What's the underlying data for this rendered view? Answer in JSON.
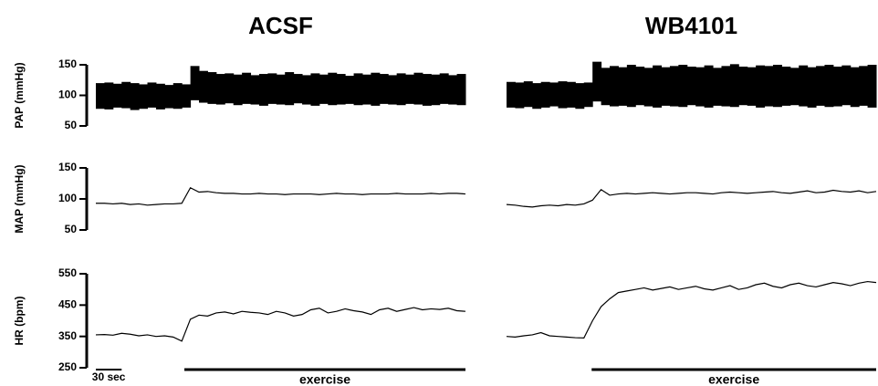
{
  "chart_data": [
    {
      "title": "ACSF",
      "xlim": [
        0,
        430
      ],
      "scalebar": {
        "label": "30 sec",
        "length": 30
      },
      "exercise": {
        "label": "exercise",
        "x": [
          103,
          430
        ]
      },
      "panels": [
        {
          "type": "range",
          "ylabel": "PAP (mmHg)",
          "ylim": [
            50,
            150
          ],
          "yticks": [
            50,
            100,
            150
          ],
          "x": [
            0,
            10,
            20,
            30,
            40,
            50,
            60,
            70,
            80,
            90,
            100,
            110,
            120,
            130,
            140,
            150,
            160,
            170,
            180,
            190,
            200,
            210,
            220,
            230,
            240,
            250,
            260,
            270,
            280,
            290,
            300,
            310,
            320,
            330,
            340,
            350,
            360,
            370,
            380,
            390,
            400,
            410,
            420,
            430
          ],
          "high": [
            120,
            121,
            119,
            122,
            120,
            118,
            121,
            119,
            117,
            120,
            118,
            148,
            140,
            138,
            135,
            136,
            134,
            137,
            133,
            135,
            136,
            134,
            138,
            135,
            133,
            136,
            134,
            137,
            135,
            132,
            136,
            134,
            137,
            135,
            133,
            136,
            134,
            137,
            135,
            134,
            136,
            133,
            135,
            132
          ],
          "low": [
            78,
            77,
            80,
            79,
            76,
            78,
            80,
            77,
            79,
            78,
            80,
            92,
            88,
            86,
            85,
            87,
            84,
            86,
            85,
            83,
            86,
            85,
            84,
            87,
            85,
            83,
            86,
            84,
            85,
            86,
            84,
            85,
            83,
            86,
            85,
            84,
            86,
            85,
            83,
            84,
            86,
            85,
            84,
            85
          ]
        },
        {
          "type": "line",
          "ylabel": "MAP (mmHg)",
          "ylim": [
            50,
            150
          ],
          "yticks": [
            50,
            100,
            150
          ],
          "x": [
            0,
            10,
            20,
            30,
            40,
            50,
            60,
            70,
            80,
            90,
            100,
            110,
            120,
            130,
            140,
            150,
            160,
            170,
            180,
            190,
            200,
            210,
            220,
            230,
            240,
            250,
            260,
            270,
            280,
            290,
            300,
            310,
            320,
            330,
            340,
            350,
            360,
            370,
            380,
            390,
            400,
            410,
            420,
            430
          ],
          "values": [
            93,
            93,
            92,
            93,
            91,
            92,
            90,
            91,
            92,
            92,
            93,
            118,
            111,
            112,
            110,
            109,
            109,
            108,
            108,
            109,
            108,
            108,
            107,
            108,
            108,
            108,
            107,
            108,
            109,
            108,
            108,
            107,
            108,
            108,
            108,
            109,
            108,
            108,
            108,
            109,
            108,
            109,
            109,
            108
          ]
        },
        {
          "type": "line",
          "ylabel": "HR (bpm)",
          "ylim": [
            250,
            550
          ],
          "yticks": [
            250,
            350,
            450,
            550
          ],
          "x": [
            0,
            10,
            20,
            30,
            40,
            50,
            60,
            70,
            80,
            90,
            100,
            110,
            120,
            130,
            140,
            150,
            160,
            170,
            180,
            190,
            200,
            210,
            220,
            230,
            240,
            250,
            260,
            270,
            280,
            290,
            300,
            310,
            320,
            330,
            340,
            350,
            360,
            370,
            380,
            390,
            400,
            410,
            420,
            430
          ],
          "values": [
            355,
            356,
            354,
            360,
            357,
            352,
            355,
            350,
            352,
            348,
            335,
            405,
            418,
            415,
            425,
            428,
            422,
            430,
            427,
            425,
            420,
            430,
            425,
            415,
            420,
            435,
            440,
            425,
            430,
            438,
            432,
            428,
            420,
            435,
            440,
            430,
            436,
            442,
            435,
            438,
            436,
            440,
            432,
            430
          ]
        }
      ]
    },
    {
      "title": "WB4101",
      "xlim": [
        0,
        430
      ],
      "exercise": {
        "label": "exercise",
        "x": [
          99,
          430
        ]
      },
      "panels": [
        {
          "type": "range",
          "ylim": [
            50,
            150
          ],
          "x": [
            0,
            10,
            20,
            30,
            40,
            50,
            60,
            70,
            80,
            90,
            100,
            110,
            120,
            130,
            140,
            150,
            160,
            170,
            180,
            190,
            200,
            210,
            220,
            230,
            240,
            250,
            260,
            270,
            280,
            290,
            300,
            310,
            320,
            330,
            340,
            350,
            360,
            370,
            380,
            390,
            400,
            410,
            420,
            430
          ],
          "high": [
            122,
            121,
            123,
            120,
            122,
            121,
            123,
            122,
            120,
            121,
            155,
            145,
            148,
            146,
            150,
            147,
            145,
            149,
            146,
            148,
            150,
            147,
            146,
            149,
            145,
            148,
            151,
            147,
            146,
            149,
            148,
            150,
            147,
            145,
            149,
            146,
            148,
            150,
            147,
            149,
            146,
            148,
            147,
            150
          ],
          "low": [
            80,
            79,
            81,
            78,
            80,
            82,
            79,
            80,
            78,
            81,
            90,
            84,
            82,
            83,
            81,
            84,
            82,
            80,
            83,
            82,
            81,
            84,
            82,
            80,
            83,
            82,
            81,
            84,
            83,
            80,
            82,
            81,
            83,
            84,
            82,
            80,
            83,
            81,
            82,
            84,
            81,
            83,
            82,
            80
          ]
        },
        {
          "type": "line",
          "ylim": [
            50,
            150
          ],
          "x": [
            0,
            10,
            20,
            30,
            40,
            50,
            60,
            70,
            80,
            90,
            100,
            110,
            120,
            130,
            140,
            150,
            160,
            170,
            180,
            190,
            200,
            210,
            220,
            230,
            240,
            250,
            260,
            270,
            280,
            290,
            300,
            310,
            320,
            330,
            340,
            350,
            360,
            370,
            380,
            390,
            400,
            410,
            420,
            430
          ],
          "values": [
            91,
            90,
            88,
            87,
            89,
            90,
            89,
            91,
            90,
            92,
            98,
            115,
            106,
            108,
            109,
            108,
            109,
            110,
            109,
            108,
            109,
            110,
            110,
            109,
            108,
            110,
            111,
            110,
            109,
            110,
            111,
            112,
            110,
            109,
            111,
            113,
            110,
            111,
            114,
            112,
            111,
            113,
            110,
            112
          ]
        },
        {
          "type": "line",
          "ylim": [
            250,
            550
          ],
          "x": [
            0,
            10,
            20,
            30,
            40,
            50,
            60,
            70,
            80,
            90,
            100,
            110,
            120,
            130,
            140,
            150,
            160,
            170,
            180,
            190,
            200,
            210,
            220,
            230,
            240,
            250,
            260,
            270,
            280,
            290,
            300,
            310,
            320,
            330,
            340,
            350,
            360,
            370,
            380,
            390,
            400,
            410,
            420,
            430
          ],
          "values": [
            350,
            348,
            352,
            355,
            362,
            352,
            350,
            348,
            346,
            345,
            400,
            445,
            470,
            490,
            495,
            500,
            505,
            498,
            503,
            508,
            500,
            505,
            510,
            502,
            498,
            505,
            512,
            500,
            505,
            515,
            520,
            510,
            505,
            515,
            520,
            512,
            508,
            515,
            522,
            518,
            512,
            520,
            525,
            522
          ]
        }
      ]
    }
  ]
}
